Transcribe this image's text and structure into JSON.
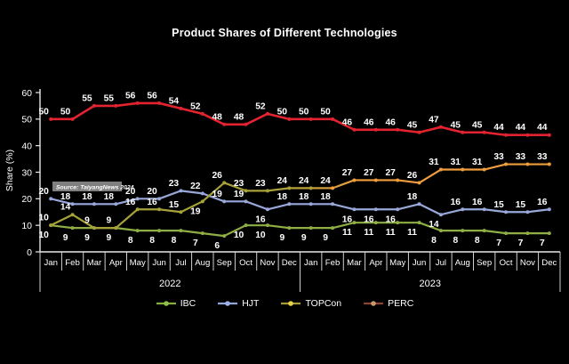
{
  "title": "Product Shares of Different Technologies",
  "source_label": "Source: TaiyangNews 2024",
  "chart_data": {
    "type": "line",
    "months": [
      "Jan",
      "Feb",
      "Mar",
      "Apr",
      "May",
      "Jun",
      "Jul",
      "Aug",
      "Sep",
      "Oct",
      "Nov",
      "Dec"
    ],
    "years": [
      "2022",
      "2023"
    ],
    "ylabel": "Share (%)",
    "ylim": [
      0,
      60
    ],
    "yticks": [
      0,
      10,
      20,
      30,
      40,
      50,
      60
    ],
    "grid": false,
    "legend_position": "bottom",
    "series": [
      {
        "name": "IBC",
        "color": "#8fae44",
        "label_position": "below",
        "below_indices": [],
        "values": [
          10,
          9,
          9,
          9,
          8,
          8,
          8,
          7,
          6,
          10,
          10,
          9,
          9,
          9,
          11,
          11,
          11,
          11,
          8,
          8,
          8,
          7,
          7,
          7
        ]
      },
      {
        "name": "HJT",
        "color": "#98a8da",
        "label_position": "above",
        "below_indices": [
          10,
          14,
          15,
          16,
          18
        ],
        "values": [
          20,
          18,
          18,
          18,
          20,
          20,
          23,
          22,
          19,
          19,
          16,
          18,
          18,
          18,
          16,
          16,
          16,
          18,
          14,
          16,
          16,
          15,
          15,
          16
        ]
      },
      {
        "name": "TOPCon",
        "color": "#b5a238",
        "color_start": "#a7a139",
        "color_end": "#ef9d3d",
        "label_position": "above",
        "below_indices": [
          7
        ],
        "values": [
          10,
          14,
          9,
          9,
          16,
          16,
          15,
          19,
          26,
          23,
          23,
          24,
          24,
          24,
          27,
          27,
          27,
          26,
          31,
          31,
          31,
          33,
          33,
          33
        ]
      },
      {
        "name": "PERC",
        "color": "#e32330",
        "label_position": "above",
        "below_indices": [],
        "values": [
          50,
          50,
          55,
          55,
          56,
          56,
          54,
          52,
          48,
          48,
          52,
          50,
          50,
          50,
          46,
          46,
          46,
          45,
          47,
          45,
          45,
          44,
          44,
          44
        ]
      }
    ],
    "legend": [
      {
        "label": "IBC",
        "line_color": "#86ad3e",
        "marker_color": "#8fbf4a"
      },
      {
        "label": "HJT",
        "line_color": "#93a5da",
        "marker_color": "#9db0e2"
      },
      {
        "label": "TOPCon",
        "line_color": "#a89a35",
        "marker_color": "#e8d24a"
      },
      {
        "label": "PERC",
        "line_color": "#8a4436",
        "marker_color": "#c79a6b"
      }
    ]
  }
}
